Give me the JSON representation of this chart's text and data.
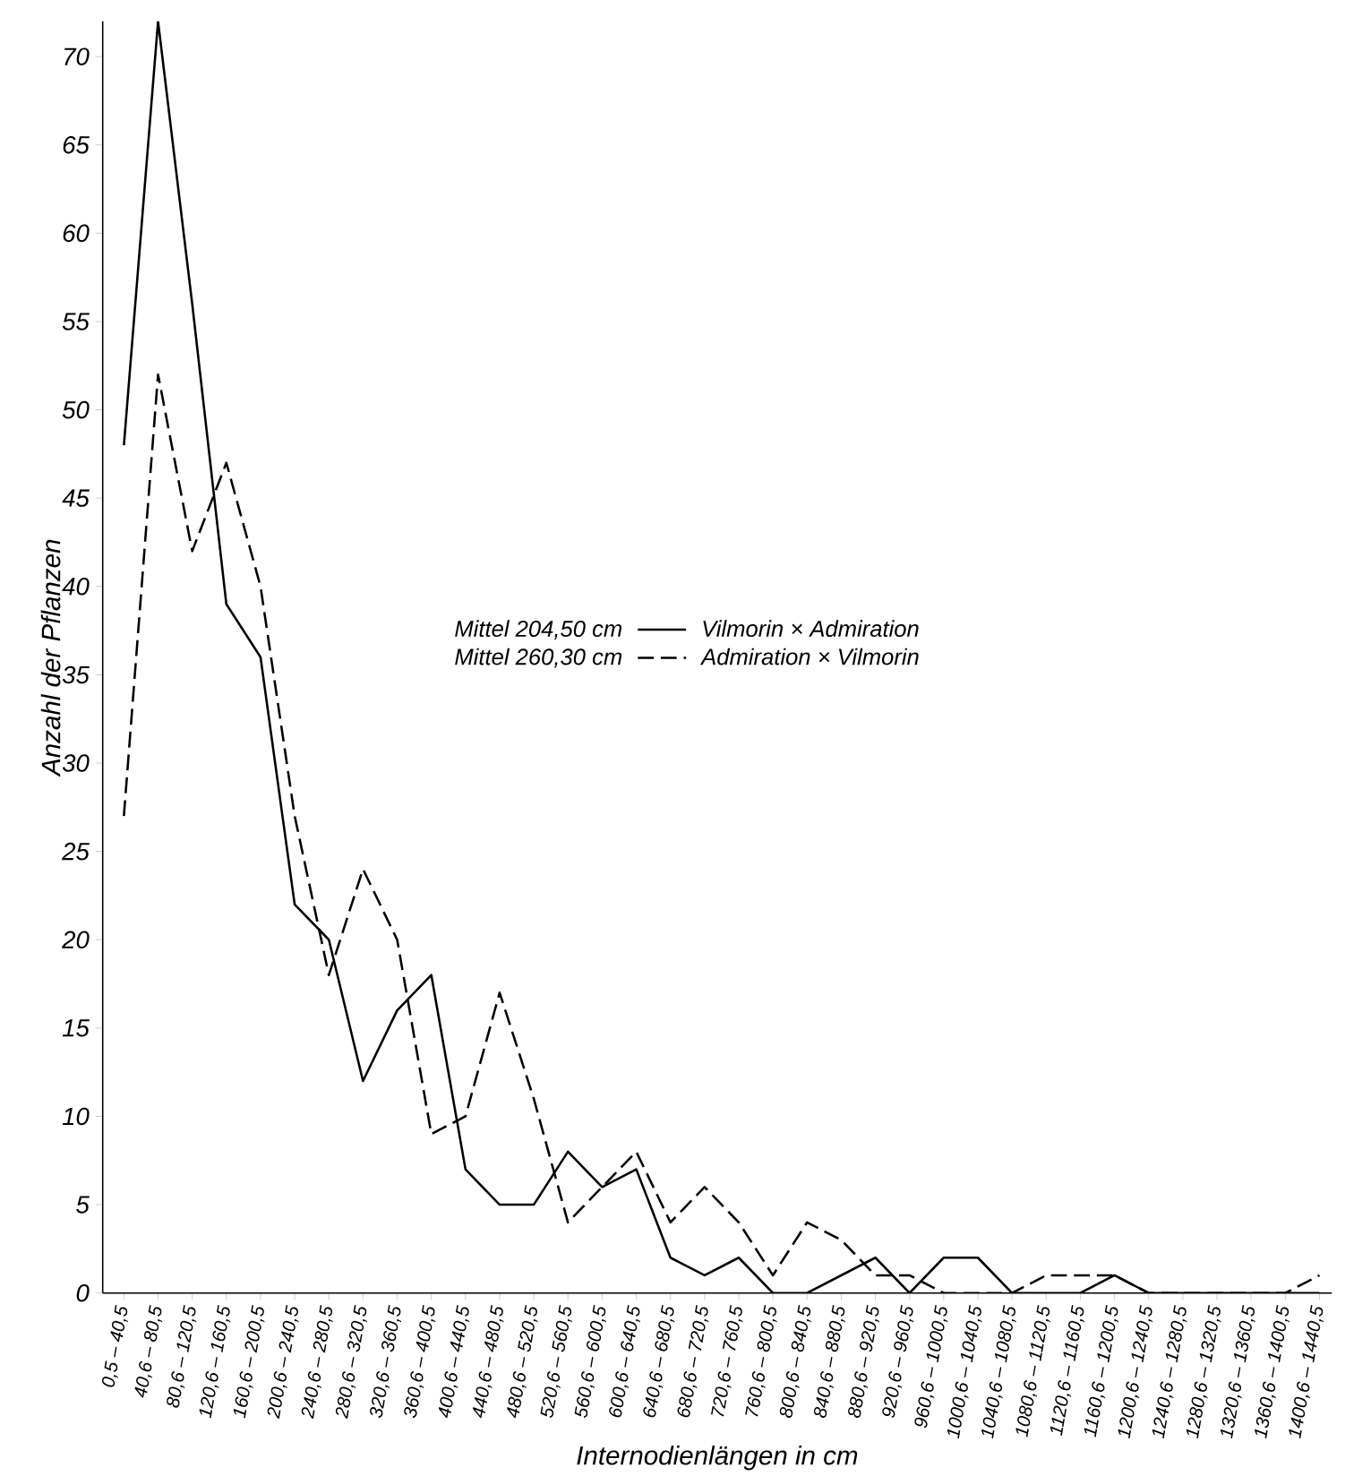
{
  "chart_data": {
    "type": "line",
    "xlabel": "Internodienlängen in cm",
    "ylabel": "Anzahl der Pflanzen",
    "categories": [
      "0,5 – 40,5",
      "40,6 – 80,5",
      "80,6 – 120,5",
      "120,6 – 160,5",
      "160,6 – 200,5",
      "200,6 – 240,5",
      "240,6 – 280,5",
      "280,6 – 320,5",
      "320,6 – 360,5",
      "360,6 – 400,5",
      "400,6 – 440,5",
      "440,6 – 480,5",
      "480,6 – 520,5",
      "520,6 – 560,5",
      "560,6 – 600,5",
      "600,6 – 640,5",
      "640,6 – 680,5",
      "680,6 – 720,5",
      "720,6 – 760,5",
      "760,6 – 800,5",
      "800,6 – 840,5",
      "840,6 – 880,5",
      "880,6 – 920,5",
      "920,6 – 960,5",
      "960,6 – 1000,5",
      "1000,6 – 1040,5",
      "1040,6 – 1080,5",
      "1080,6 – 1120,5",
      "1120,6 – 1160,5",
      "1160,6 – 1200,5",
      "1200,6 – 1240,5",
      "1240,6 – 1280,5",
      "1280,6 – 1320,5",
      "1320,6 – 1360,5",
      "1360,6 – 1400,5",
      "1400,6 – 1440,5"
    ],
    "series": [
      {
        "name": "Vilmorin × Admiration",
        "color": "#000000",
        "line_style": "solid",
        "values": [
          48,
          72,
          56,
          39,
          36,
          22,
          20,
          12,
          16,
          18,
          7,
          5,
          5,
          8,
          6,
          7,
          2,
          1,
          2,
          0,
          0,
          1,
          2,
          0,
          2,
          2,
          0,
          0,
          0,
          1,
          0,
          0,
          0,
          0,
          0,
          0
        ]
      },
      {
        "name": "Admiration × Vilmorin",
        "color": "#000000",
        "line_style": "dashed",
        "values": [
          27,
          52,
          42,
          47,
          40,
          27,
          18,
          24,
          20,
          9,
          10,
          17,
          11,
          4,
          6,
          8,
          4,
          6,
          4,
          1,
          4,
          3,
          1,
          1,
          0,
          0,
          0,
          1,
          1,
          1,
          0,
          0,
          0,
          0,
          0,
          1
        ]
      }
    ],
    "annotations": [
      "Mittel 204,50 cm",
      "Mittel 260,30 cm"
    ],
    "ylim": [
      0,
      72
    ],
    "yticks": [
      0,
      5,
      10,
      15,
      20,
      25,
      30,
      35,
      40,
      45,
      50,
      55,
      60,
      65,
      70
    ],
    "grid": false,
    "legend": "center",
    "marker": "none"
  }
}
